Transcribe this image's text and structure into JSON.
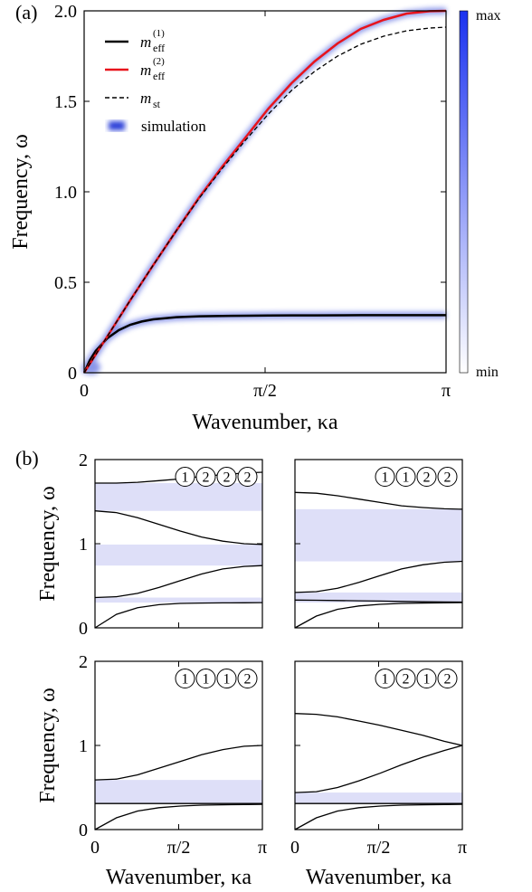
{
  "colors": {
    "black": "#000000",
    "red": "#e8141c",
    "band": "#dedff8",
    "sim": "#2a3fd8",
    "cbar_top": "#1a32f0"
  },
  "chart_data": [
    {
      "id": "a",
      "panel_label": "(a)",
      "type": "line",
      "xlabel": "Wavenumber, κa",
      "ylabel": "Frequency, ω",
      "xlim": [
        0,
        3.14159
      ],
      "ylim": [
        0,
        2.0
      ],
      "xticks": [
        {
          "value": 0,
          "label": "0"
        },
        {
          "value": 1.5708,
          "label": "π/2"
        },
        {
          "value": 3.14159,
          "label": "π"
        }
      ],
      "yticks": [
        {
          "value": 0,
          "label": "0"
        },
        {
          "value": 0.5,
          "label": "0.5"
        },
        {
          "value": 1.0,
          "label": "1.0"
        },
        {
          "value": 1.5,
          "label": "1.5"
        },
        {
          "value": 2.0,
          "label": "2.0"
        }
      ],
      "legend": [
        {
          "label": "m",
          "sub": "eff",
          "sup": "(1)",
          "style": "solid-black"
        },
        {
          "label": "m",
          "sub": "eff",
          "sup": "(2)",
          "style": "solid-red"
        },
        {
          "label": "m",
          "sub": "st",
          "sup": "",
          "style": "dashed-black"
        },
        {
          "label": "simulation",
          "sub": "",
          "sup": "",
          "style": "blur-blue"
        }
      ],
      "series": [
        {
          "style": "solid-black",
          "x": [
            0,
            0.05,
            0.1,
            0.2,
            0.3,
            0.4,
            0.5,
            0.6,
            0.8,
            1.0,
            1.2,
            1.4,
            1.6,
            1.8,
            2.0,
            2.4,
            2.8,
            3.14159
          ],
          "y": [
            0,
            0.07,
            0.12,
            0.19,
            0.235,
            0.265,
            0.283,
            0.295,
            0.307,
            0.312,
            0.314,
            0.315,
            0.316,
            0.317,
            0.317,
            0.318,
            0.318,
            0.318
          ]
        },
        {
          "style": "solid-red",
          "x": [
            0,
            0.2,
            0.4,
            0.6,
            0.8,
            1.0,
            1.2,
            1.4,
            1.6,
            1.8,
            2.0,
            2.2,
            2.4,
            2.6,
            2.8,
            3.0,
            3.14159
          ],
          "y": [
            0,
            0.2,
            0.4,
            0.595,
            0.785,
            0.97,
            1.14,
            1.3,
            1.46,
            1.6,
            1.72,
            1.82,
            1.9,
            1.95,
            1.985,
            1.998,
            2.0
          ]
        },
        {
          "style": "dashed-black",
          "x": [
            0,
            0.2,
            0.4,
            0.6,
            0.8,
            1.0,
            1.2,
            1.4,
            1.6,
            1.8,
            2.0,
            2.2,
            2.4,
            2.6,
            2.8,
            3.0,
            3.14159
          ],
          "y": [
            0,
            0.2,
            0.4,
            0.595,
            0.785,
            0.965,
            1.13,
            1.285,
            1.43,
            1.56,
            1.665,
            1.75,
            1.815,
            1.86,
            1.89,
            1.905,
            1.91
          ]
        }
      ],
      "colorbar": {
        "top_label": "max",
        "bottom_label": "min"
      }
    },
    {
      "id": "b1",
      "panel_label": "(b)",
      "type": "line",
      "xlabel": "",
      "ylabel": "Frequency, ω",
      "xlim": [
        0,
        3.14159
      ],
      "ylim": [
        0,
        2
      ],
      "xticks": [],
      "yticks": [
        {
          "value": 0,
          "label": "0"
        },
        {
          "value": 1,
          "label": "1"
        },
        {
          "value": 2,
          "label": "2"
        }
      ],
      "unit_cell": [
        "1",
        "2",
        "2",
        "2"
      ],
      "gaps": [
        [
          0.3,
          0.36
        ],
        [
          0.74,
          0.99
        ],
        [
          1.39,
          1.72
        ]
      ],
      "series": [
        {
          "x": [
            0,
            0.4,
            0.8,
            1.2,
            1.6,
            2.0,
            2.4,
            2.8,
            3.14159
          ],
          "y": [
            0,
            0.16,
            0.24,
            0.275,
            0.29,
            0.295,
            0.297,
            0.298,
            0.3
          ]
        },
        {
          "x": [
            0,
            0.4,
            0.8,
            1.2,
            1.6,
            2.0,
            2.4,
            2.8,
            3.14159
          ],
          "y": [
            0.36,
            0.37,
            0.41,
            0.48,
            0.56,
            0.64,
            0.7,
            0.73,
            0.74
          ]
        },
        {
          "x": [
            0,
            0.4,
            0.8,
            1.2,
            1.6,
            2.0,
            2.4,
            2.8,
            3.14159
          ],
          "y": [
            1.39,
            1.37,
            1.31,
            1.23,
            1.15,
            1.08,
            1.03,
            1.0,
            0.99
          ]
        },
        {
          "x": [
            0,
            0.4,
            0.8,
            1.2,
            1.6,
            2.0,
            2.4,
            2.8,
            3.14159
          ],
          "y": [
            1.72,
            1.72,
            1.73,
            1.75,
            1.77,
            1.8,
            1.82,
            1.84,
            1.85
          ]
        }
      ]
    },
    {
      "id": "b2",
      "panel_label": "",
      "type": "line",
      "xlabel": "",
      "ylabel": "",
      "xlim": [
        0,
        3.14159
      ],
      "ylim": [
        0,
        2
      ],
      "xticks": [],
      "yticks": [],
      "unit_cell": [
        "1",
        "1",
        "2",
        "2"
      ],
      "gaps": [
        [
          0.3,
          0.42
        ],
        [
          0.79,
          1.41
        ]
      ],
      "series": [
        {
          "x": [
            0,
            0.4,
            0.8,
            1.2,
            1.6,
            2.0,
            2.4,
            2.8,
            3.14159
          ],
          "y": [
            0,
            0.14,
            0.22,
            0.26,
            0.28,
            0.29,
            0.295,
            0.298,
            0.3
          ]
        },
        {
          "x": [
            0,
            0.4,
            0.8,
            1.2,
            1.6,
            2.0,
            2.4,
            2.8,
            3.14159
          ],
          "y": [
            0.42,
            0.43,
            0.47,
            0.54,
            0.62,
            0.7,
            0.75,
            0.78,
            0.79
          ]
        },
        {
          "x": [
            0,
            0.4,
            0.8,
            1.2,
            1.6,
            2.0,
            2.4,
            2.8,
            3.14159
          ],
          "y": [
            0.33,
            0.328,
            0.325,
            0.322,
            0.318,
            0.314,
            0.31,
            0.308,
            0.306
          ]
        },
        {
          "x": [
            0,
            0.4,
            0.8,
            1.2,
            1.6,
            2.0,
            2.4,
            2.8,
            3.14159
          ],
          "y": [
            1.61,
            1.6,
            1.57,
            1.53,
            1.49,
            1.45,
            1.43,
            1.415,
            1.41
          ]
        }
      ]
    },
    {
      "id": "b3",
      "panel_label": "",
      "type": "line",
      "xlabel": "Wavenumber, κa",
      "ylabel": "Frequency, ω",
      "xlim": [
        0,
        3.14159
      ],
      "ylim": [
        0,
        2
      ],
      "xticks": [
        {
          "value": 0,
          "label": "0"
        },
        {
          "value": 1.5708,
          "label": "π/2"
        },
        {
          "value": 3.14159,
          "label": "π"
        }
      ],
      "yticks": [
        {
          "value": 0,
          "label": "0"
        },
        {
          "value": 1,
          "label": "1"
        },
        {
          "value": 2,
          "label": "2"
        }
      ],
      "unit_cell": [
        "1",
        "1",
        "1",
        "2"
      ],
      "gaps": [
        [
          0.31,
          0.59
        ]
      ],
      "series": [
        {
          "x": [
            0,
            0.4,
            0.8,
            1.2,
            1.6,
            2.0,
            2.4,
            2.8,
            3.14159
          ],
          "y": [
            0,
            0.14,
            0.22,
            0.26,
            0.28,
            0.29,
            0.295,
            0.298,
            0.3
          ]
        },
        {
          "x": [
            0,
            0.4,
            0.8,
            1.2,
            1.6,
            2.0,
            2.4,
            2.8,
            3.14159
          ],
          "y": [
            0.31,
            0.31,
            0.31,
            0.31,
            0.31,
            0.31,
            0.31,
            0.31,
            0.31
          ]
        },
        {
          "x": [
            0,
            0.4,
            0.8,
            1.2,
            1.6,
            2.0,
            2.4,
            2.8,
            3.14159
          ],
          "y": [
            0.59,
            0.6,
            0.65,
            0.73,
            0.81,
            0.89,
            0.95,
            0.99,
            1.0
          ]
        }
      ]
    },
    {
      "id": "b4",
      "panel_label": "",
      "type": "line",
      "xlabel": "Wavenumber, κa",
      "ylabel": "",
      "xlim": [
        0,
        3.14159
      ],
      "ylim": [
        0,
        2
      ],
      "xticks": [
        {
          "value": 0,
          "label": "0"
        },
        {
          "value": 1.5708,
          "label": "π/2"
        },
        {
          "value": 3.14159,
          "label": "π"
        }
      ],
      "yticks": [],
      "unit_cell": [
        "1",
        "2",
        "1",
        "2"
      ],
      "gaps": [
        [
          0.31,
          0.44
        ]
      ],
      "series": [
        {
          "x": [
            0,
            0.4,
            0.8,
            1.2,
            1.6,
            2.0,
            2.4,
            2.8,
            3.14159
          ],
          "y": [
            0,
            0.14,
            0.22,
            0.26,
            0.28,
            0.29,
            0.295,
            0.298,
            0.3
          ]
        },
        {
          "x": [
            0,
            0.4,
            0.8,
            1.2,
            1.6,
            2.0,
            2.4,
            2.8,
            3.14159
          ],
          "y": [
            0.31,
            0.31,
            0.31,
            0.31,
            0.31,
            0.31,
            0.31,
            0.31,
            0.31
          ]
        },
        {
          "x": [
            0,
            0.4,
            0.8,
            1.2,
            1.6,
            2.0,
            2.4,
            2.8,
            3.14159
          ],
          "y": [
            0.44,
            0.45,
            0.5,
            0.58,
            0.67,
            0.77,
            0.86,
            0.94,
            1.0
          ]
        },
        {
          "x": [
            0,
            0.4,
            0.8,
            1.2,
            1.6,
            2.0,
            2.4,
            2.8,
            3.14159
          ],
          "y": [
            1.38,
            1.37,
            1.34,
            1.29,
            1.24,
            1.18,
            1.12,
            1.05,
            1.0
          ]
        }
      ]
    }
  ]
}
